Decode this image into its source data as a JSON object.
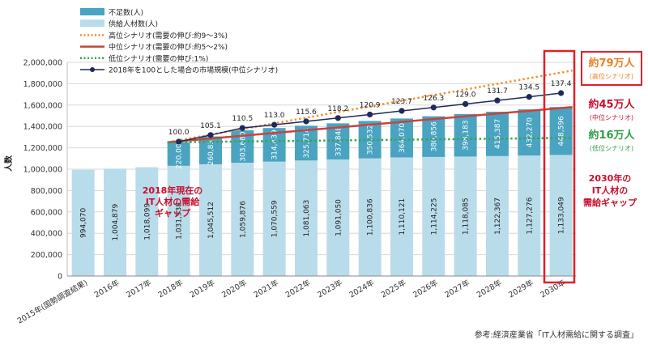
{
  "chart_data": {
    "type": "bar",
    "ylabel": "人数",
    "ylim": [
      0,
      2000000
    ],
    "yticks": [
      "0",
      "200,000",
      "400,000",
      "600,000",
      "800,000",
      "1,000,000",
      "1,200,000",
      "1,400,000",
      "1,600,000",
      "1,800,000",
      "2,000,000"
    ],
    "categories": [
      "2015年(国勢調査結果)",
      "2016年",
      "2017年",
      "2018年",
      "2019年",
      "2020年",
      "2021年",
      "2022年",
      "2023年",
      "2024年",
      "2025年",
      "2026年",
      "2027年",
      "2028年",
      "2029年",
      "2030年"
    ],
    "series": [
      {
        "name": "供給人材数(人)",
        "color": "#b9dcea",
        "values": [
          994070,
          1004879,
          1018099,
          1031538,
          1045512,
          1059876,
          1070559,
          1081063,
          1091050,
          1100836,
          1110121,
          1114225,
          1118085,
          1122367,
          1127276,
          1133049
        ],
        "labels": [
          "994,070",
          "1,004,879",
          "1,018,099",
          "1,031,538",
          "1,045,512",
          "1,059,876",
          "1,070,559",
          "1,081,063",
          "1,091,050",
          "1,100,836",
          "1,110,121",
          "1,114,225",
          "1,118,085",
          "1,122,367",
          "1,127,276",
          "1,133,049"
        ]
      },
      {
        "name": "不足数(人)",
        "color": "#4aa3c1",
        "values": [
          null,
          null,
          null,
          220000,
          260835,
          303680,
          314439,
          325714,
          337848,
          350532,
          364070,
          380856,
          398183,
          415387,
          432270,
          448596
        ],
        "labels": [
          "",
          "",
          "",
          "220,000",
          "260,835",
          "303,680",
          "314,439",
          "325,714",
          "337,848",
          "350,532",
          "364,070",
          "380,856",
          "398,183",
          "415,387",
          "432,270",
          "448,596"
        ]
      },
      {
        "name": "2018年を100とした場合の市場規模(中位シナリオ)",
        "type": "line",
        "color": "#1f2a5a",
        "values": [
          null,
          null,
          null,
          100.0,
          105.1,
          110.5,
          113.0,
          115.6,
          118.2,
          120.9,
          123.7,
          126.3,
          129.0,
          131.7,
          134.5,
          137.4
        ],
        "labels": [
          "",
          "",
          "",
          "100.0",
          "105.1",
          "110.5",
          "113.0",
          "115.6",
          "118.2",
          "120.9",
          "123.7",
          "126.3",
          "129.0",
          "131.7",
          "134.5",
          "137.4"
        ]
      },
      {
        "name": "高位シナリオ(需要の伸び:約9〜3%)",
        "type": "line",
        "style": "dotted",
        "color": "#f0922f",
        "values": [
          null,
          null,
          null,
          1251538,
          null,
          null,
          null,
          null,
          null,
          null,
          null,
          null,
          null,
          null,
          null,
          1923049
        ]
      },
      {
        "name": "中位シナリオ(需要の伸び:約5〜2%)",
        "type": "line",
        "color": "#c8443c",
        "values": [
          null,
          null,
          null,
          1251538,
          null,
          null,
          null,
          null,
          null,
          null,
          null,
          null,
          null,
          null,
          null,
          1581645
        ]
      },
      {
        "name": "低位シナリオ(需要の伸び:1%)",
        "type": "line",
        "style": "dotted",
        "color": "#3aa34a",
        "values": [
          null,
          null,
          null,
          1251538,
          null,
          null,
          null,
          null,
          null,
          null,
          null,
          null,
          null,
          null,
          null,
          1293049
        ]
      }
    ],
    "legend_position": "top-left",
    "annotations": {
      "current_gap": [
        "2018年現在の",
        "IT人材の需給",
        "ギャップ"
      ],
      "gap_2030": [
        "2030年の",
        "IT人材の",
        "需給ギャップ"
      ],
      "high": {
        "big": "約79万人",
        "small": "(高位シナリオ)"
      },
      "mid": {
        "big": "約45万人",
        "small": "(中位シナリオ)"
      },
      "low": {
        "big": "約16万人",
        "small": "(低位シナリオ)"
      }
    },
    "source": "参考:経済産業省「IT人材需給に関する調査」"
  }
}
